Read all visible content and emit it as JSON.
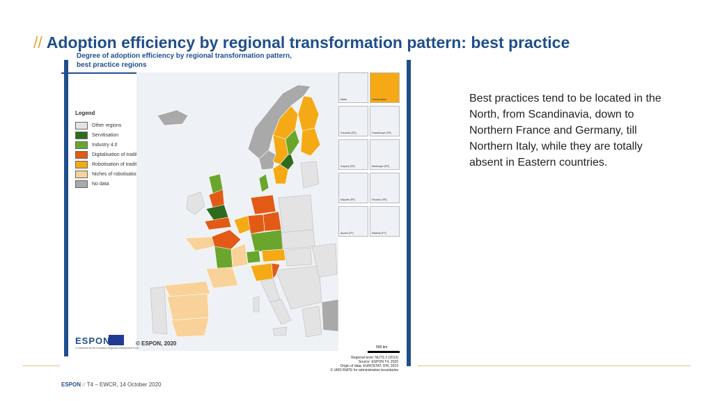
{
  "slide": {
    "title_prefix": "//",
    "title": "Adoption efficiency by regional transformation pattern: best practice"
  },
  "map": {
    "heading_line1": "Degree of adoption efficiency by regional transformation pattern,",
    "heading_line2": "best practice regions",
    "legend_title": "Legend",
    "legend": [
      {
        "label": "Other regions",
        "color": "#e3e3e3"
      },
      {
        "label": "Servitisation",
        "color": "#2e6b1e"
      },
      {
        "label": "Industry 4.0",
        "color": "#6aa62d"
      },
      {
        "label": "Digitalisation of traditional services",
        "color": "#e25a16"
      },
      {
        "label": "Robotisation of traditional manufacturing",
        "color": "#f5a915"
      },
      {
        "label": "Niches of robotisation",
        "color": "#f9d29a"
      },
      {
        "label": "No data",
        "color": "#a9a9a9"
      }
    ],
    "insets": [
      "Malta",
      "Liechtenstein",
      "Canarias (ES)",
      "Guadeloupe (FR)",
      "Guyane (FR)",
      "Martinique (FR)",
      "Mayotte (FR)",
      "Réunion (FR)",
      "Açores (PT)",
      "Madeira (PT)"
    ],
    "logo": "ESPON",
    "logo_sub": "Co-financed by the European Regional Development Fund",
    "copyright": "© ESPON, 2020",
    "scale": "500 km",
    "source": {
      "line1": "Regional level: NUTS 2 (2013)",
      "line2": "Source: ESPON T4, 2020",
      "line3": "Origin of data: EUROSTAT, IFR, 2019",
      "line4": "© UMS RIATE for administrative boundaries"
    }
  },
  "description": "Best practices tend to be located in the North, from Scandinavia, down to Northern France and Germany, till Northern Italy, while they are totally absent in Eastern countries.",
  "footer": {
    "brand": "ESPON",
    "slashes": "//",
    "text": "T4 – EWCR, 14 October 2020"
  }
}
